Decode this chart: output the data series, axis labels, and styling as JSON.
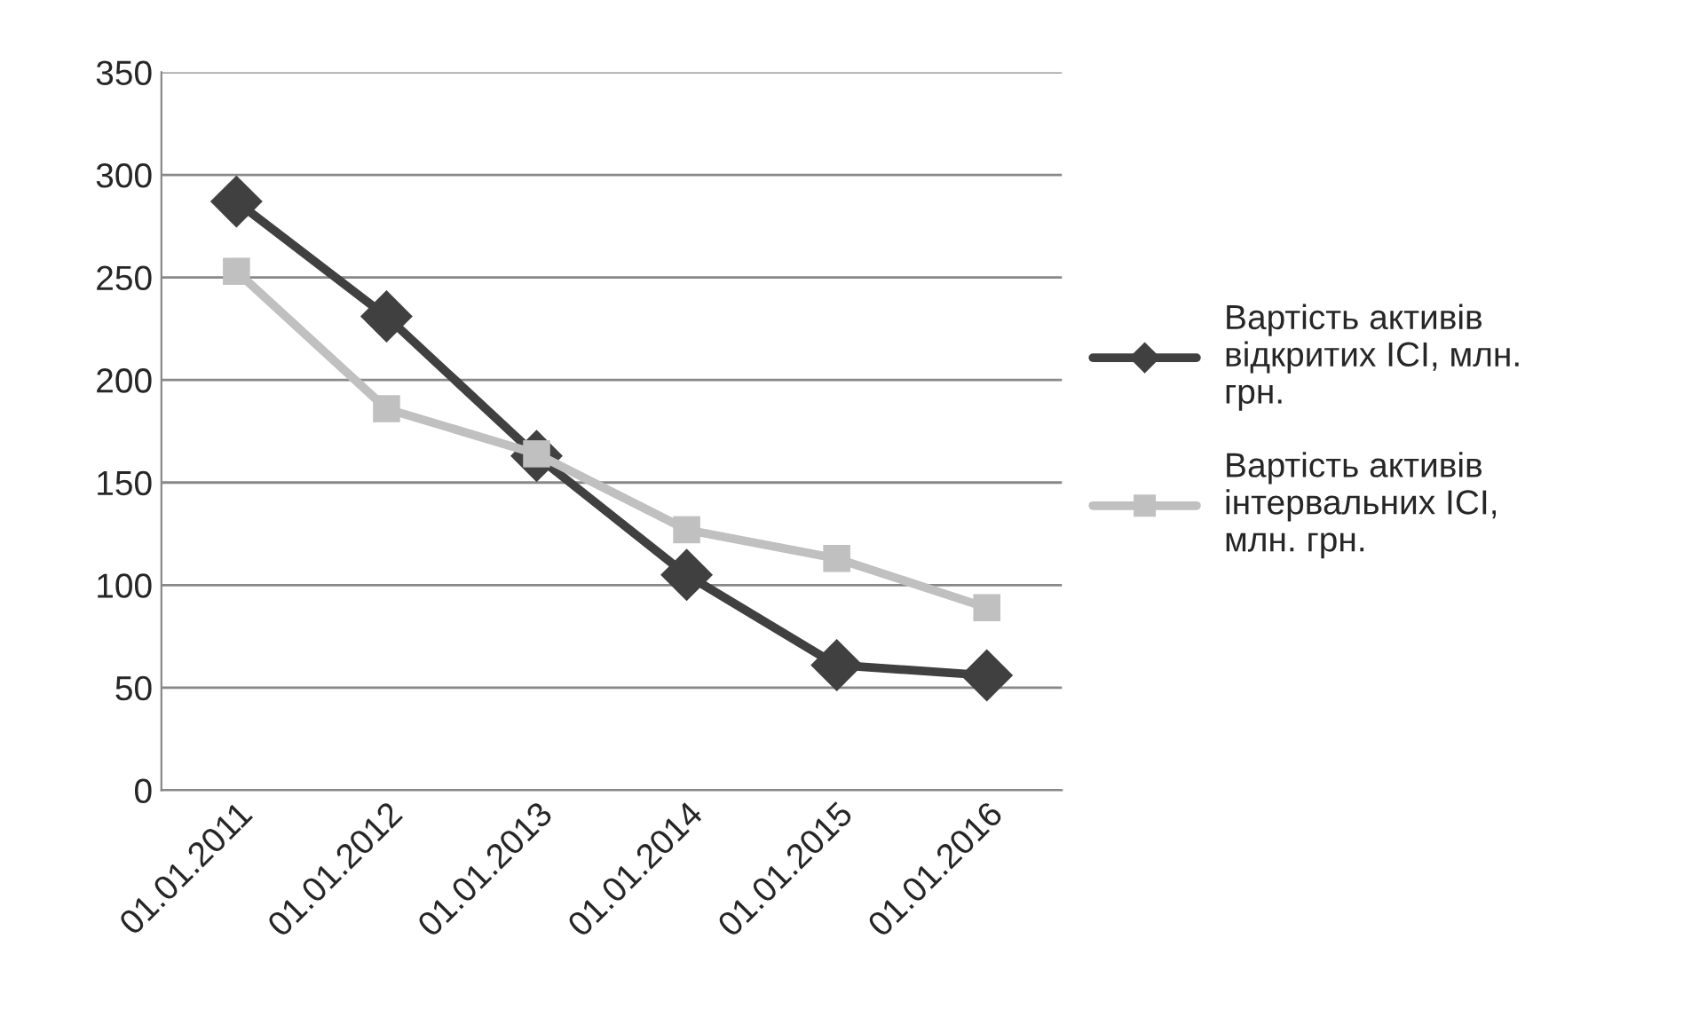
{
  "chart_data": {
    "type": "line",
    "categories": [
      "01.01.2011",
      "01.01.2012",
      "01.01.2013",
      "01.01.2014",
      "01.01.2015",
      "01.01.2016"
    ],
    "series": [
      {
        "name": "Вартість активів відкритих ІСІ, млн. грн.",
        "color": "#404040",
        "marker": "diamond",
        "values": [
          287,
          231,
          163,
          105,
          61,
          56
        ]
      },
      {
        "name": "Вартість активів інтервальних ІСІ, млн. грн.",
        "color": "#c0c0c0",
        "marker": "square",
        "values": [
          253,
          186,
          164,
          127,
          113,
          89
        ]
      }
    ],
    "ylim": [
      0,
      350
    ],
    "yticks": [
      0,
      50,
      100,
      150,
      200,
      250,
      300,
      350
    ],
    "grid": "y",
    "legend": "right"
  }
}
